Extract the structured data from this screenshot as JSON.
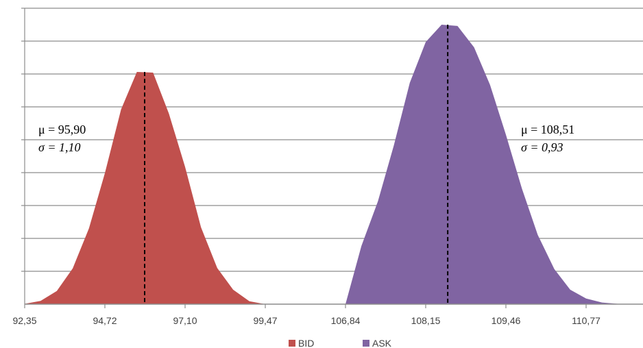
{
  "chart_data": {
    "type": "area",
    "title": "",
    "xlabel": "",
    "ylabel": "",
    "grid": true,
    "legend_position": "bottom",
    "x_tick_labels": [
      "92,35",
      "94,72",
      "97,10",
      "99,47",
      "106,84",
      "108,15",
      "109,46",
      "110,77"
    ],
    "series": [
      {
        "name": "BID",
        "color": "#c0504d",
        "mean": 95.9,
        "std": 1.1,
        "stats_text": [
          "μ = 95,90",
          "σ = 1,10"
        ],
        "x": [
          92.35,
          92.82,
          93.3,
          93.77,
          94.25,
          94.72,
          95.2,
          95.67,
          96.15,
          96.62,
          97.1,
          97.57,
          98.05,
          98.52,
          99.0,
          99.47
        ],
        "y": [
          0.1,
          1.0,
          4.0,
          10.9,
          23.1,
          39.9,
          59.3,
          70.7,
          70.5,
          58.0,
          41.8,
          23.4,
          11.0,
          4.4,
          0.9,
          0.0
        ]
      },
      {
        "name": "ASK",
        "color": "#8064a2",
        "mean": 108.51,
        "std": 0.93,
        "stats_text": [
          "μ = 108,51",
          "σ = 0,93"
        ],
        "x": [
          106.84,
          107.1,
          107.37,
          107.63,
          107.89,
          108.15,
          108.41,
          108.67,
          108.94,
          109.2,
          109.46,
          109.72,
          109.98,
          110.25,
          110.51,
          110.77,
          111.03,
          111.29,
          111.56
        ],
        "y": [
          0.0,
          17.7,
          31.3,
          48.4,
          67.4,
          79.8,
          85.1,
          84.7,
          78.2,
          66.8,
          51.6,
          35.3,
          21.1,
          10.7,
          4.4,
          1.7,
          0.5,
          0.1,
          0.0
        ]
      }
    ]
  }
}
